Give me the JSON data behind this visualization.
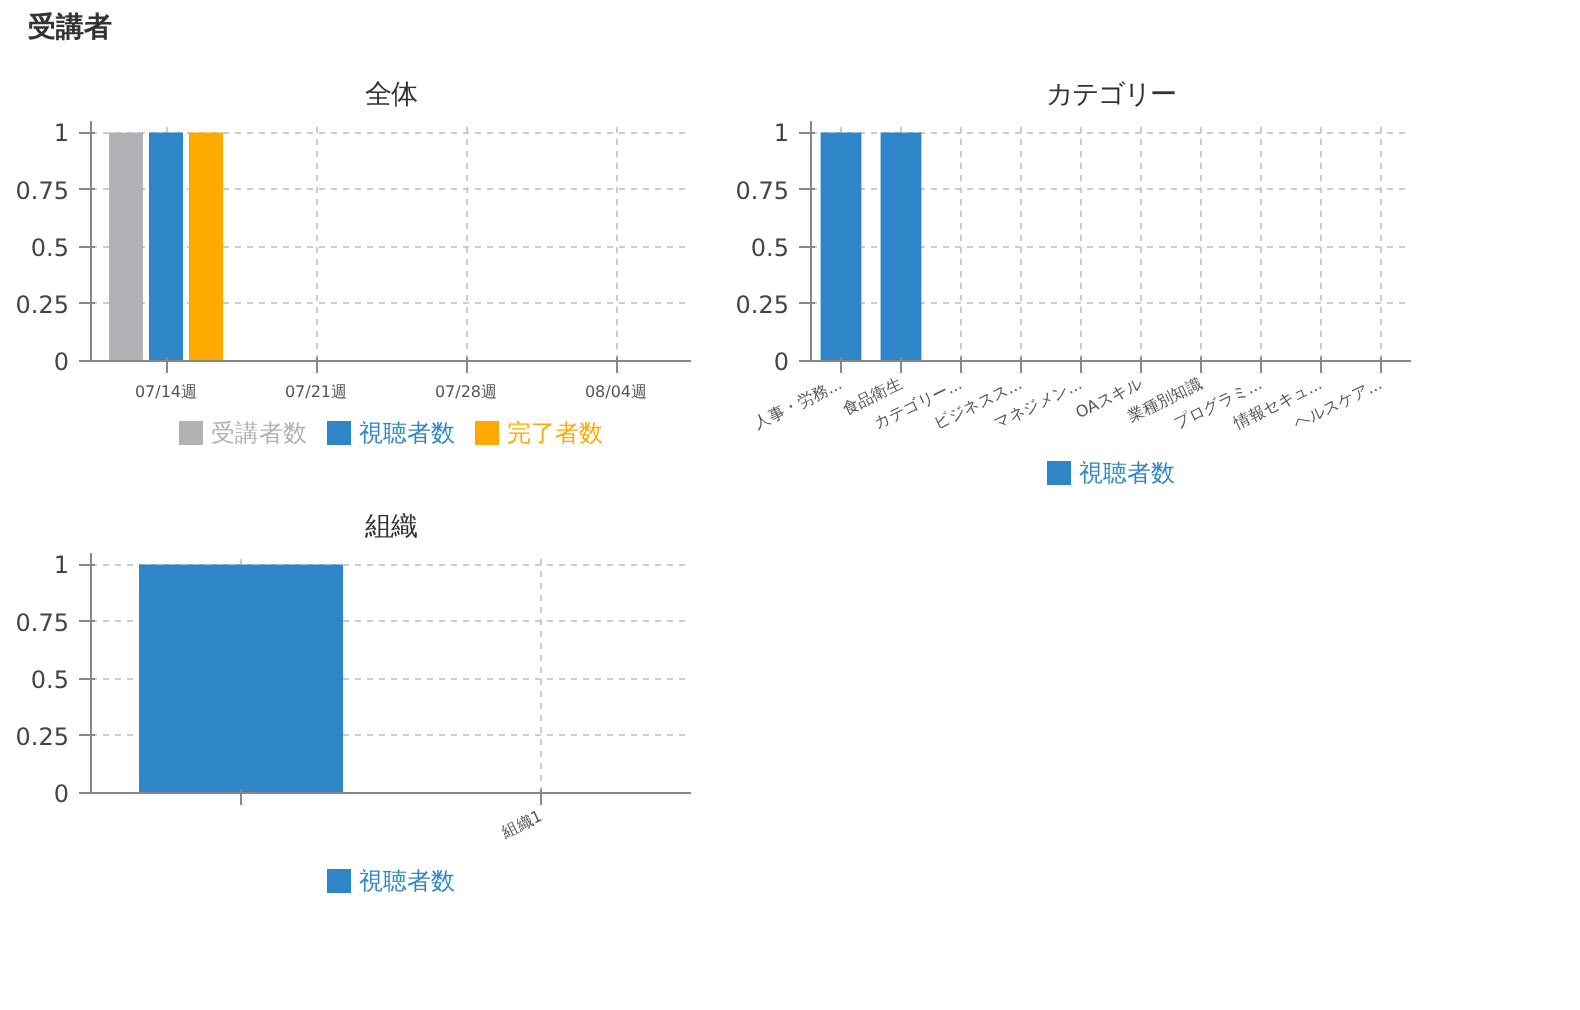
{
  "chart_data": [
    {
      "type": "bar",
      "title": "全体",
      "annotations": [
        "受講者"
      ],
      "categories": [
        "07/14週",
        "07/21週",
        "07/28週",
        "08/04週"
      ],
      "series": [
        {
          "name": "受講者数",
          "color": "#b0b2b6",
          "values": [
            1,
            0,
            0,
            0
          ]
        },
        {
          "name": "視聴者数",
          "color": "#2e86c8",
          "values": [
            1,
            0,
            0,
            0
          ]
        },
        {
          "name": "完了者数",
          "color": "#ffaa00",
          "values": [
            1,
            0,
            0,
            0
          ]
        }
      ],
      "ylim": [
        0,
        1.05
      ],
      "yticks": [
        0,
        0.25,
        0.5,
        0.75,
        1
      ],
      "grid": true,
      "legend": "bottom"
    },
    {
      "type": "bar",
      "title": "カテゴリー",
      "categories": [
        "人事・労務...",
        "食品衛生",
        "カテゴリー...",
        "ビジネスス...",
        "マネジメン...",
        "OAスキル",
        "業種別知識",
        "プログラミ...",
        "情報セキュ...",
        "ヘルスケア..."
      ],
      "series": [
        {
          "name": "視聴者数",
          "color": "#2e86c8",
          "values": [
            1,
            1,
            0,
            0,
            0,
            0,
            0,
            0,
            0,
            0
          ]
        }
      ],
      "ylim": [
        0,
        1.05
      ],
      "yticks": [
        0,
        0.25,
        0.5,
        0.75,
        1
      ],
      "grid": true,
      "legend": "bottom"
    },
    {
      "type": "bar",
      "title": "組織",
      "categories": [
        null,
        "組織1"
      ],
      "series": [
        {
          "name": "視聴者数",
          "color": "#2e86c8",
          "values": [
            1,
            0
          ]
        }
      ],
      "ylim": [
        0,
        1.05
      ],
      "yticks": [
        0,
        0.25,
        0.5,
        0.75,
        1
      ],
      "grid": true,
      "legend": "bottom"
    }
  ]
}
